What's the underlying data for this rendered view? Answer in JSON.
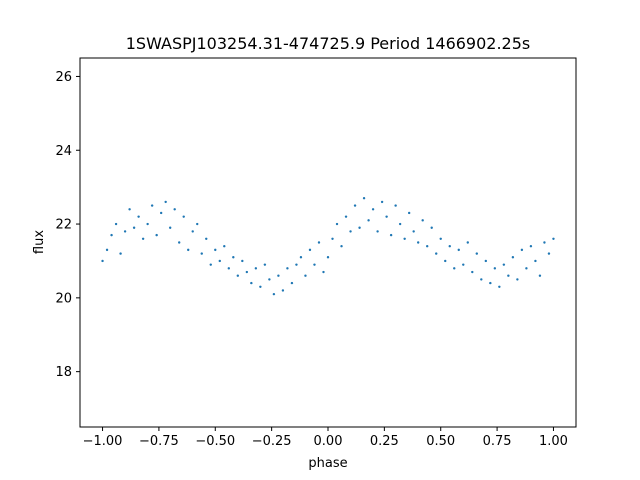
{
  "chart_data": {
    "type": "scatter",
    "title": "1SWASPJ103254.31-474725.9 Period 1466902.25s",
    "xlabel": "phase",
    "ylabel": "flux",
    "xlim": [
      -1.1,
      1.1
    ],
    "ylim": [
      16.5,
      26.5
    ],
    "xticks": [
      -1.0,
      -0.75,
      -0.5,
      -0.25,
      0.0,
      0.25,
      0.5,
      0.75,
      1.0
    ],
    "xtick_labels": [
      "−1.00",
      "−0.75",
      "−0.50",
      "−0.25",
      "0.00",
      "0.25",
      "0.50",
      "0.75",
      "1.00"
    ],
    "yticks": [
      18,
      20,
      22,
      24,
      26
    ],
    "ytick_labels": [
      "18",
      "20",
      "22",
      "24",
      "26"
    ],
    "grid": false,
    "marker_color": "#1f77b4",
    "series": [
      {
        "x": [
          -1.0,
          -0.98,
          -0.96,
          -0.94,
          -0.92,
          -0.9,
          -0.88,
          -0.86,
          -0.84,
          -0.82,
          -0.8,
          -0.78,
          -0.76,
          -0.74,
          -0.72,
          -0.7,
          -0.68,
          -0.66,
          -0.64,
          -0.62,
          -0.6,
          -0.58,
          -0.56,
          -0.54,
          -0.52,
          -0.5,
          -0.48,
          -0.46,
          -0.44,
          -0.42,
          -0.4,
          -0.38,
          -0.36,
          -0.34,
          -0.32,
          -0.3,
          -0.28,
          -0.26,
          -0.24,
          -0.22,
          -0.2,
          -0.18,
          -0.16,
          -0.14,
          -0.12,
          -0.1,
          -0.08,
          -0.06,
          -0.04,
          -0.02,
          0.0,
          0.02,
          0.04,
          0.06,
          0.08,
          0.1,
          0.12,
          0.14,
          0.16,
          0.18,
          0.2,
          0.22,
          0.24,
          0.26,
          0.28,
          0.3,
          0.32,
          0.34,
          0.36,
          0.38,
          0.4,
          0.42,
          0.44,
          0.46,
          0.48,
          0.5,
          0.52,
          0.54,
          0.56,
          0.58,
          0.6,
          0.62,
          0.64,
          0.66,
          0.68,
          0.7,
          0.72,
          0.74,
          0.76,
          0.78,
          0.8,
          0.82,
          0.84,
          0.86,
          0.88,
          0.9,
          0.92,
          0.94,
          0.96,
          0.98,
          1.0
        ],
        "y": [
          21.0,
          21.3,
          21.7,
          22.0,
          21.2,
          21.8,
          22.4,
          21.9,
          22.2,
          21.6,
          22.0,
          22.5,
          21.7,
          22.3,
          22.6,
          21.9,
          22.4,
          21.5,
          22.2,
          21.3,
          21.8,
          22.0,
          21.2,
          21.6,
          20.9,
          21.3,
          21.0,
          21.4,
          20.8,
          21.1,
          20.6,
          21.0,
          20.7,
          20.4,
          20.8,
          20.3,
          20.9,
          20.5,
          20.1,
          20.6,
          20.2,
          20.8,
          20.4,
          20.9,
          21.1,
          20.6,
          21.3,
          20.9,
          21.5,
          20.7,
          21.1,
          21.6,
          22.0,
          21.4,
          22.2,
          21.8,
          22.5,
          21.9,
          22.7,
          22.1,
          22.4,
          21.8,
          22.6,
          22.2,
          21.7,
          22.5,
          22.0,
          21.6,
          22.3,
          21.8,
          21.5,
          22.1,
          21.4,
          21.9,
          21.2,
          21.6,
          21.0,
          21.4,
          20.8,
          21.3,
          20.9,
          21.5,
          20.7,
          21.2,
          20.5,
          21.0,
          20.4,
          20.8,
          20.3,
          20.9,
          20.6,
          21.1,
          20.5,
          21.3,
          20.8,
          21.4,
          21.0,
          20.6,
          21.5,
          21.2,
          21.6
        ]
      }
    ]
  }
}
